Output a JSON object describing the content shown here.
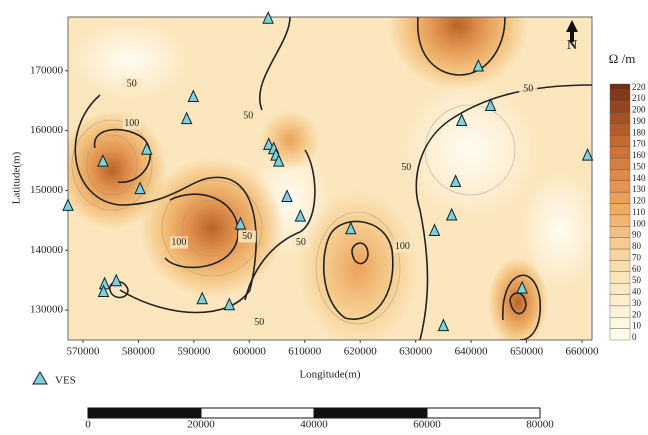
{
  "map": {
    "x_label": "Longitude(m)",
    "y_label": "Latitude(m)",
    "xlim": [
      567300,
      661800
    ],
    "xticks": [
      570000,
      580000,
      590000,
      600000,
      610000,
      620000,
      630000,
      640000,
      650000,
      660000
    ],
    "ylim": [
      125000,
      179000
    ],
    "yticks": [
      130000,
      140000,
      150000,
      160000,
      170000
    ],
    "colorbar": {
      "title": "Ω /m",
      "lim": [
        0,
        225
      ],
      "ticks": [
        0,
        10,
        20,
        30,
        40,
        50,
        60,
        70,
        80,
        90,
        100,
        110,
        120,
        130,
        140,
        150,
        160,
        170,
        180,
        190,
        200,
        210,
        220
      ]
    },
    "contour_labels": [
      {
        "x": 578800,
        "y": 167800,
        "value": 50
      },
      {
        "x": 578800,
        "y": 161200,
        "value": 100
      },
      {
        "x": 587300,
        "y": 141300,
        "value": 100
      },
      {
        "x": 599800,
        "y": 162400,
        "value": 50
      },
      {
        "x": 599600,
        "y": 142300,
        "value": 50
      },
      {
        "x": 601800,
        "y": 127900,
        "value": 50
      },
      {
        "x": 609300,
        "y": 141300,
        "value": 50
      },
      {
        "x": 628300,
        "y": 153800,
        "value": 50
      },
      {
        "x": 627600,
        "y": 140600,
        "value": 100
      },
      {
        "x": 650300,
        "y": 166900,
        "value": 50
      }
    ],
    "ves": {
      "name": "VES",
      "points": [
        [
          603400,
          178800
        ],
        [
          641300,
          170800
        ],
        [
          643500,
          164200
        ],
        [
          638300,
          161700
        ],
        [
          589900,
          165700
        ],
        [
          588700,
          162000
        ],
        [
          603500,
          157700
        ],
        [
          604400,
          157000
        ],
        [
          604800,
          155900
        ],
        [
          605300,
          154900
        ],
        [
          573600,
          154900
        ],
        [
          581500,
          156900
        ],
        [
          580300,
          150300
        ],
        [
          637200,
          151500
        ],
        [
          661000,
          155900
        ],
        [
          567300,
          147500
        ],
        [
          606800,
          149000
        ],
        [
          609200,
          145700
        ],
        [
          598400,
          144400
        ],
        [
          636500,
          145900
        ],
        [
          633400,
          143300
        ],
        [
          618300,
          143600
        ],
        [
          573900,
          134400
        ],
        [
          573700,
          133100
        ],
        [
          576000,
          134900
        ],
        [
          591500,
          131900
        ],
        [
          596400,
          130900
        ],
        [
          649200,
          133700
        ],
        [
          635000,
          127400
        ]
      ]
    },
    "north": "N",
    "scale_bar": {
      "lim": [
        0,
        80000
      ],
      "ticks": [
        0,
        20000,
        40000,
        60000,
        80000
      ]
    }
  }
}
